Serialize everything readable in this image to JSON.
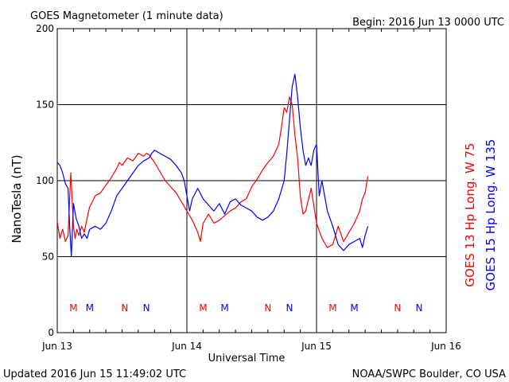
{
  "header": {
    "title": "GOES Magnetometer (1 minute data)",
    "begin": "Begin:  2016 Jun 13 0000 UTC"
  },
  "footer": {
    "updated": "Updated 2016 Jun 15 11:49:02 UTC",
    "credit": "NOAA/SWPC Boulder, CO USA"
  },
  "chart_data": {
    "type": "line",
    "xlabel": "Universal Time",
    "ylabel": "NanoTesla (nT)",
    "xlim": [
      0,
      72
    ],
    "ylim": [
      0,
      200
    ],
    "x_unit": "hours since 2016 Jun 13 0000 UTC",
    "x_ticks": [
      {
        "x": 0,
        "label": "Jun 13"
      },
      {
        "x": 24,
        "label": "Jun 14"
      },
      {
        "x": 48,
        "label": "Jun 15"
      },
      {
        "x": 72,
        "label": "Jun 16"
      }
    ],
    "y_ticks": [
      0,
      50,
      100,
      150,
      200
    ],
    "grid": true,
    "series": [
      {
        "name": "GOES 13 Hp",
        "legend": "GOES 13 Hp  Long. W 75",
        "color": "#ff0000",
        "x": [
          0,
          0.5,
          1,
          1.5,
          2,
          2.5,
          3,
          3.3,
          3.6,
          4,
          4.5,
          5,
          5.5,
          6,
          6.5,
          7,
          8,
          9,
          10,
          11,
          11.5,
          12,
          13,
          14,
          15,
          16,
          16.5,
          17,
          18,
          19,
          20,
          21,
          22,
          23,
          24,
          25,
          26,
          26.5,
          27,
          28,
          29,
          30,
          31,
          32,
          33,
          34,
          35,
          36,
          37,
          38,
          39,
          40,
          41,
          41.5,
          42,
          42.5,
          43,
          43.5,
          44,
          44.5,
          45,
          45.5,
          46,
          47,
          48,
          49,
          50,
          51,
          52,
          53,
          54,
          55,
          56,
          56.5,
          57,
          57.5
        ],
        "values": [
          73,
          62,
          68,
          60,
          64,
          105,
          70,
          62,
          68,
          64,
          70,
          66,
          75,
          83,
          86,
          90,
          92,
          97,
          102,
          108,
          112,
          110,
          115,
          113,
          118,
          116,
          118,
          117,
          112,
          106,
          100,
          96,
          92,
          86,
          80,
          74,
          66,
          60,
          72,
          78,
          72,
          74,
          77,
          80,
          82,
          86,
          88,
          96,
          101,
          107,
          112,
          116,
          124,
          135,
          148,
          145,
          155,
          150,
          130,
          115,
          90,
          78,
          80,
          95,
          72,
          62,
          56,
          58,
          70,
          60,
          66,
          72,
          80,
          88,
          92,
          103
        ]
      },
      {
        "name": "GOES 15 Hp",
        "legend": "GOES 15 Hp  Long. W 135",
        "color": "#0000ff",
        "x": [
          0,
          0.5,
          1,
          1.5,
          2,
          2.3,
          2.6,
          3,
          3.5,
          4,
          4.5,
          5,
          5.5,
          6,
          7,
          8,
          9,
          10,
          11,
          12,
          13,
          14,
          15,
          16,
          17,
          17.5,
          18,
          19,
          20,
          21,
          22,
          23,
          23.5,
          24,
          24.5,
          25,
          26,
          27,
          28,
          29,
          30,
          31,
          32,
          33,
          34,
          35,
          36,
          37,
          38,
          39,
          40,
          41,
          42,
          42.5,
          43,
          43.5,
          44,
          44.5,
          45,
          45.5,
          46,
          46.5,
          47,
          47.5,
          48,
          48.5,
          49,
          50,
          51,
          52,
          53,
          54,
          55,
          56,
          56.5,
          57,
          57.5
        ],
        "values": [
          112,
          110,
          105,
          98,
          95,
          70,
          50,
          85,
          75,
          70,
          62,
          65,
          62,
          68,
          70,
          68,
          72,
          80,
          90,
          95,
          100,
          105,
          110,
          113,
          115,
          118,
          120,
          118,
          116,
          114,
          110,
          105,
          100,
          90,
          80,
          88,
          95,
          88,
          84,
          80,
          85,
          78,
          86,
          88,
          84,
          82,
          80,
          76,
          74,
          76,
          80,
          88,
          100,
          118,
          140,
          162,
          170,
          155,
          135,
          120,
          110,
          115,
          110,
          120,
          124,
          90,
          100,
          80,
          70,
          58,
          54,
          58,
          60,
          62,
          56,
          64,
          70
        ]
      }
    ],
    "markers": [
      {
        "x": 3,
        "label": "M",
        "color": "#ff0000"
      },
      {
        "x": 6,
        "label": "M",
        "color": "#0000ff"
      },
      {
        "x": 12.5,
        "label": "N",
        "color": "#ff0000"
      },
      {
        "x": 16.5,
        "label": "N",
        "color": "#0000ff"
      },
      {
        "x": 27,
        "label": "M",
        "color": "#ff0000"
      },
      {
        "x": 31,
        "label": "M",
        "color": "#0000ff"
      },
      {
        "x": 39,
        "label": "N",
        "color": "#ff0000"
      },
      {
        "x": 43,
        "label": "N",
        "color": "#0000ff"
      },
      {
        "x": 51,
        "label": "M",
        "color": "#ff0000"
      },
      {
        "x": 55,
        "label": "M",
        "color": "#0000ff"
      },
      {
        "x": 63,
        "label": "N",
        "color": "#ff0000"
      },
      {
        "x": 67,
        "label": "N",
        "color": "#0000ff"
      }
    ]
  }
}
